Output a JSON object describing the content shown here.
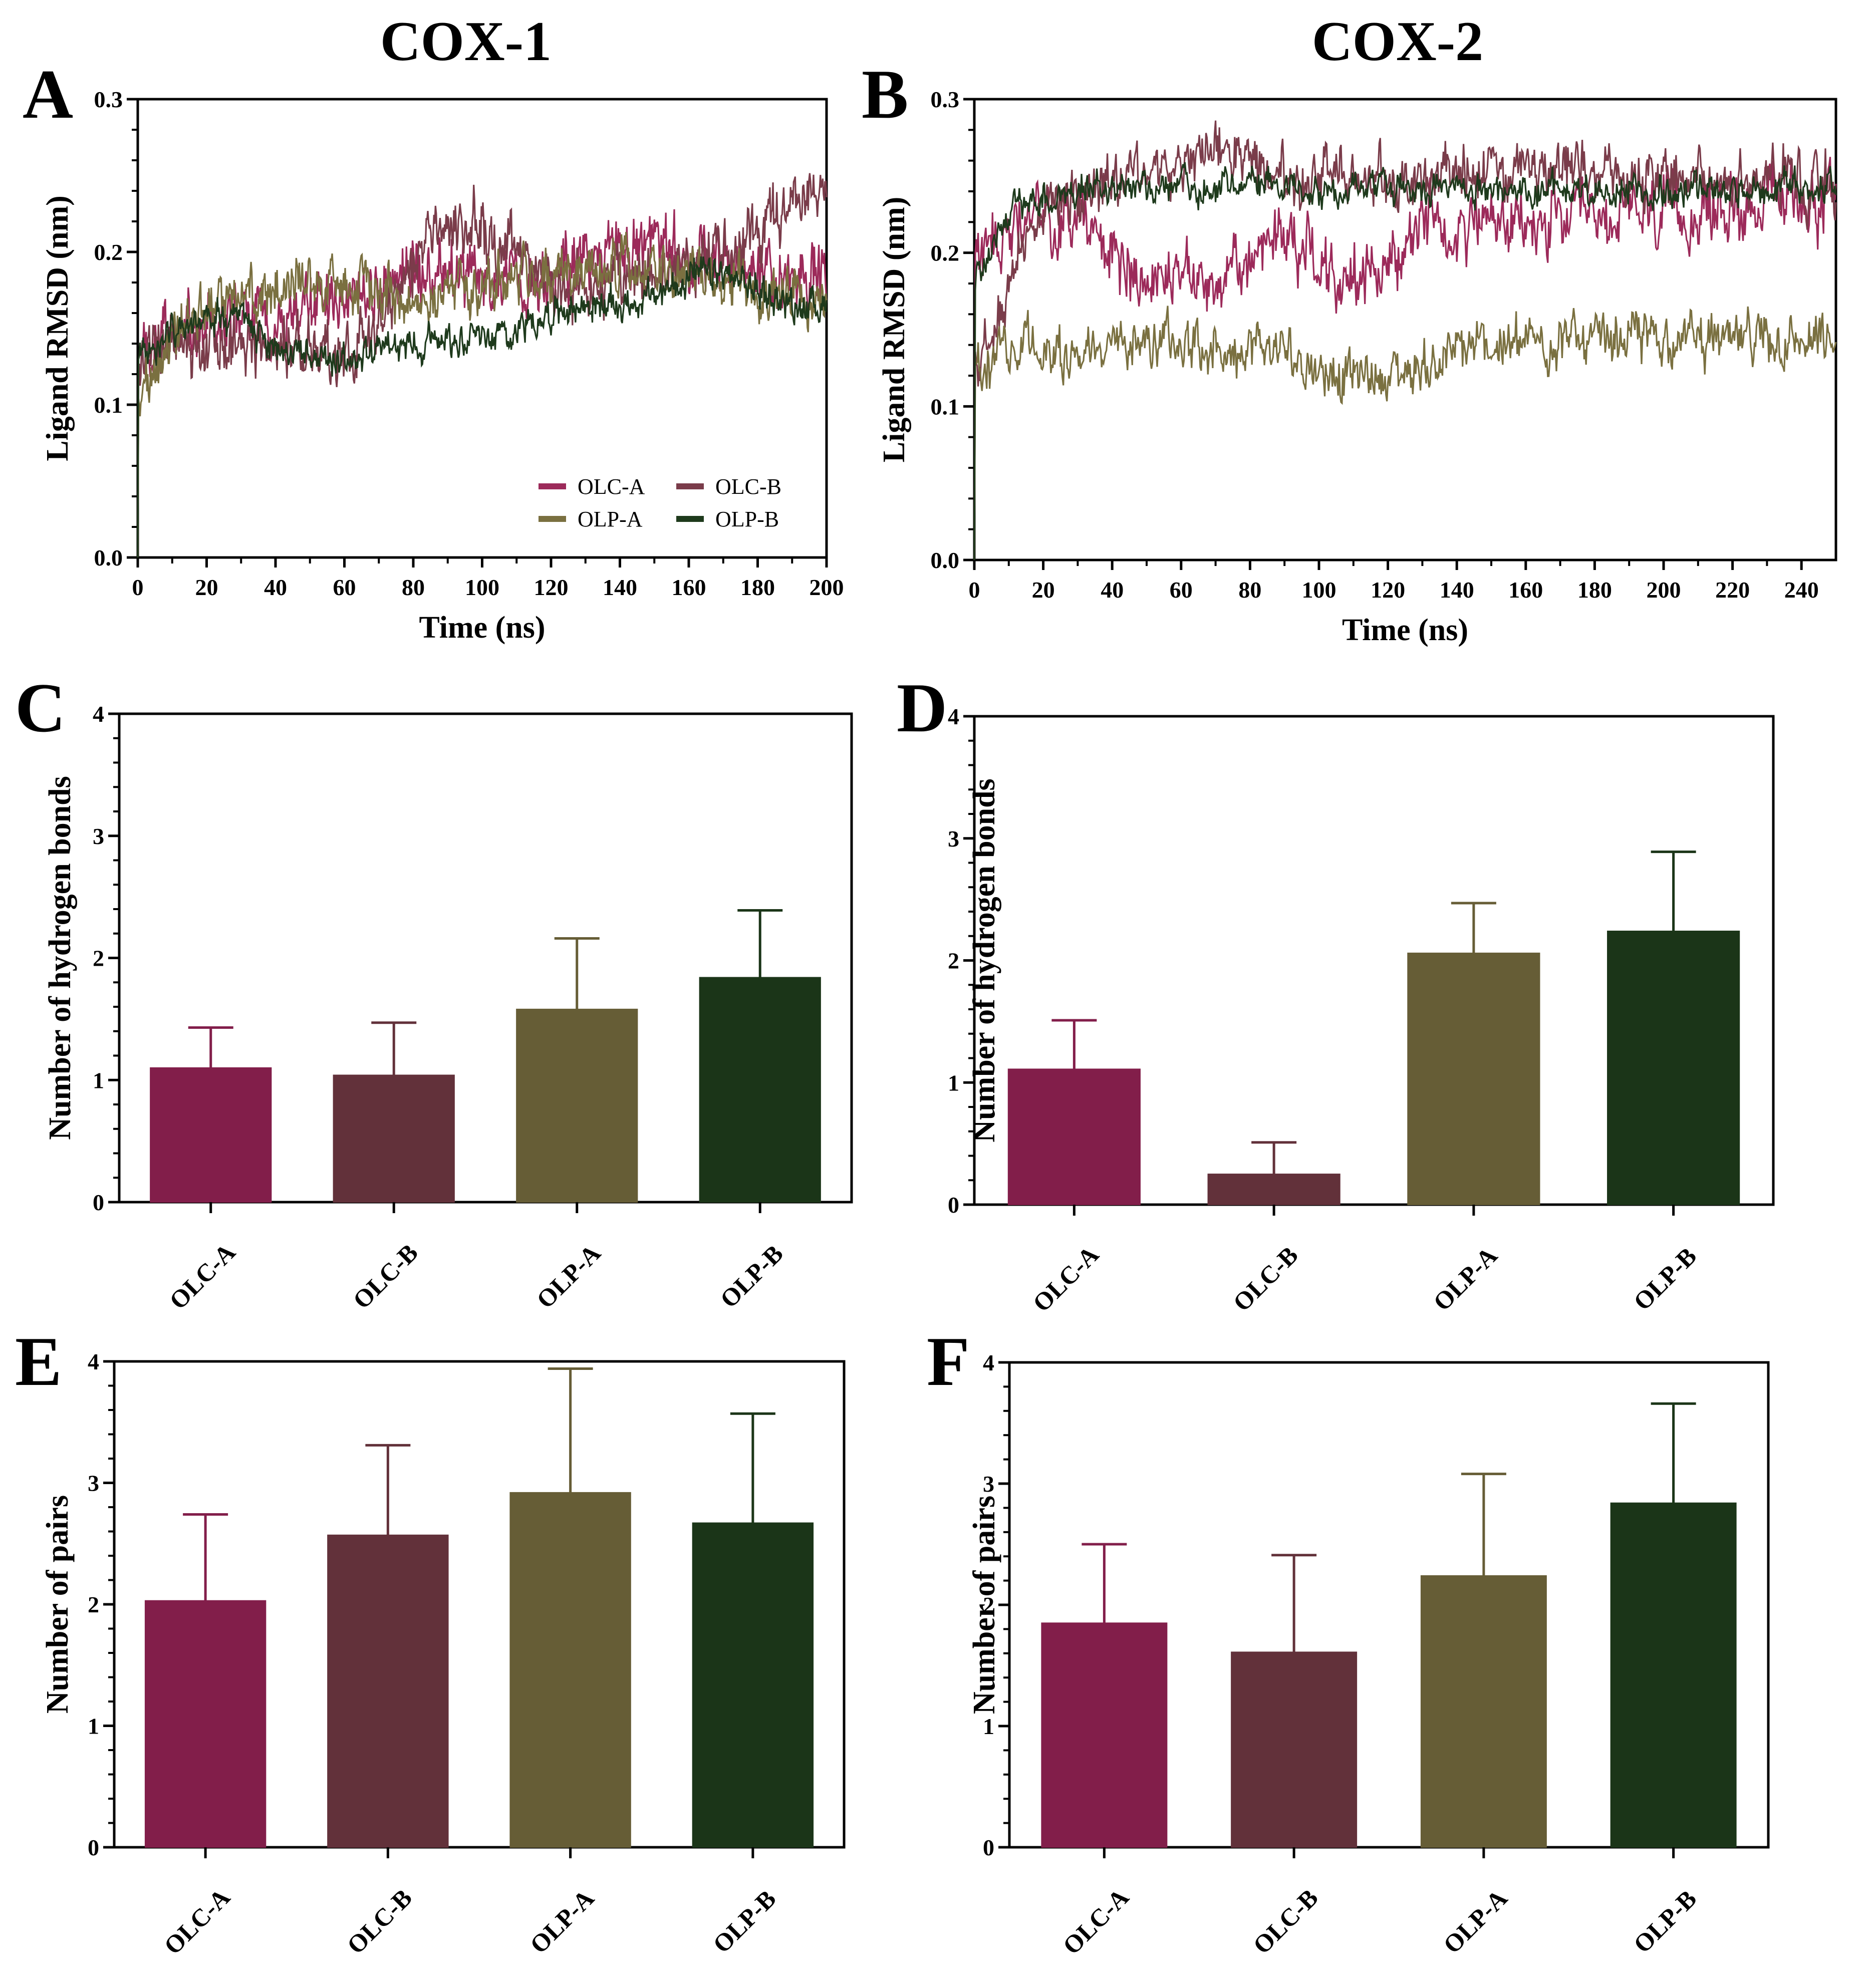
{
  "column_titles": [
    "COX-1",
    "COX-2"
  ],
  "colors": {
    "OLC-A": "#821e4a",
    "OLC-B": "#62313a",
    "OLP-A": "#665d36",
    "OLP-B": "#1b3518",
    "line_OLC-A": "#9c2a5a",
    "line_OLC-B": "#7a3c4a",
    "line_OLP-A": "#7a7040",
    "line_OLP-B": "#1e3a1c"
  },
  "chart_data": [
    {
      "panel": "A",
      "type": "line",
      "title": "COX-1",
      "xlabel": "Time (ns)",
      "ylabel": "Ligand RMSD (nm)",
      "xlim": [
        0,
        200
      ],
      "ylim": [
        0.0,
        0.3
      ],
      "xticks": [
        0,
        20,
        40,
        60,
        80,
        100,
        120,
        140,
        160,
        180,
        200
      ],
      "yticks": [
        0.0,
        0.1,
        0.2,
        0.3
      ],
      "ytick_labels": [
        "0.0",
        "0.1",
        "0.2",
        "0.3"
      ],
      "legend": [
        "OLC-A",
        "OLC-B",
        "OLP-A",
        "OLP-B"
      ],
      "legend_position": "bottom-right",
      "series": [
        {
          "name": "OLC-A",
          "x": [
            0,
            10,
            20,
            30,
            40,
            50,
            60,
            70,
            80,
            90,
            100,
            110,
            120,
            130,
            140,
            150,
            160,
            170,
            180,
            190,
            200
          ],
          "values": [
            0.12,
            0.145,
            0.15,
            0.155,
            0.155,
            0.165,
            0.17,
            0.18,
            0.185,
            0.19,
            0.185,
            0.175,
            0.18,
            0.195,
            0.2,
            0.205,
            0.2,
            0.195,
            0.19,
            0.19,
            0.185
          ]
        },
        {
          "name": "OLC-B",
          "x": [
            0,
            10,
            20,
            30,
            40,
            50,
            60,
            70,
            80,
            90,
            100,
            110,
            120,
            130,
            140,
            150,
            160,
            170,
            180,
            190,
            200
          ],
          "values": [
            0.13,
            0.14,
            0.145,
            0.14,
            0.14,
            0.135,
            0.135,
            0.15,
            0.19,
            0.22,
            0.215,
            0.2,
            0.18,
            0.175,
            0.18,
            0.185,
            0.195,
            0.2,
            0.21,
            0.23,
            0.235
          ]
        },
        {
          "name": "OLP-A",
          "x": [
            0,
            10,
            20,
            30,
            40,
            50,
            60,
            70,
            80,
            90,
            100,
            110,
            120,
            130,
            140,
            150,
            160,
            170,
            180,
            190,
            200
          ],
          "values": [
            0.1,
            0.145,
            0.165,
            0.17,
            0.175,
            0.18,
            0.18,
            0.175,
            0.17,
            0.175,
            0.18,
            0.185,
            0.185,
            0.19,
            0.19,
            0.185,
            0.185,
            0.18,
            0.18,
            0.175,
            0.165
          ]
        },
        {
          "name": "OLP-B",
          "x": [
            0,
            10,
            20,
            30,
            40,
            50,
            60,
            70,
            80,
            90,
            100,
            110,
            120,
            130,
            140,
            150,
            160,
            170,
            180,
            190,
            200
          ],
          "values": [
            0.13,
            0.15,
            0.155,
            0.16,
            0.135,
            0.13,
            0.13,
            0.135,
            0.14,
            0.145,
            0.145,
            0.15,
            0.16,
            0.165,
            0.165,
            0.17,
            0.185,
            0.185,
            0.175,
            0.165,
            0.165
          ]
        }
      ]
    },
    {
      "panel": "B",
      "type": "line",
      "title": "COX-2",
      "xlabel": "Time (ns)",
      "ylabel": "Ligand RMSD (nm)",
      "xlim": [
        0,
        250
      ],
      "ylim": [
        0.0,
        0.3
      ],
      "xticks": [
        0,
        20,
        40,
        60,
        80,
        100,
        120,
        140,
        160,
        180,
        200,
        220,
        240
      ],
      "yticks": [
        0.0,
        0.1,
        0.2,
        0.3
      ],
      "ytick_labels": [
        "0.0",
        "0.1",
        "0.2",
        "0.3"
      ],
      "series": [
        {
          "name": "OLC-A",
          "x": [
            0,
            10,
            20,
            30,
            40,
            50,
            60,
            70,
            80,
            90,
            100,
            110,
            120,
            130,
            140,
            150,
            160,
            170,
            180,
            190,
            200,
            210,
            220,
            230,
            240,
            250
          ],
          "values": [
            0.19,
            0.22,
            0.225,
            0.23,
            0.195,
            0.19,
            0.185,
            0.18,
            0.195,
            0.215,
            0.195,
            0.185,
            0.19,
            0.22,
            0.22,
            0.22,
            0.215,
            0.22,
            0.22,
            0.225,
            0.225,
            0.225,
            0.23,
            0.235,
            0.235,
            0.235
          ]
        },
        {
          "name": "OLC-B",
          "x": [
            0,
            10,
            20,
            30,
            40,
            50,
            60,
            70,
            80,
            90,
            100,
            110,
            120,
            130,
            140,
            150,
            160,
            170,
            180,
            190,
            200,
            210,
            220,
            230,
            240,
            250
          ],
          "values": [
            0.12,
            0.19,
            0.23,
            0.235,
            0.245,
            0.25,
            0.26,
            0.265,
            0.255,
            0.245,
            0.25,
            0.255,
            0.245,
            0.245,
            0.25,
            0.25,
            0.255,
            0.26,
            0.255,
            0.25,
            0.25,
            0.25,
            0.25,
            0.25,
            0.245,
            0.245
          ]
        },
        {
          "name": "OLP-A",
          "x": [
            0,
            10,
            20,
            30,
            40,
            50,
            60,
            70,
            80,
            90,
            100,
            110,
            120,
            130,
            140,
            150,
            160,
            170,
            180,
            190,
            200,
            210,
            220,
            230,
            240,
            250
          ],
          "values": [
            0.12,
            0.14,
            0.14,
            0.135,
            0.14,
            0.14,
            0.14,
            0.135,
            0.14,
            0.135,
            0.125,
            0.12,
            0.12,
            0.125,
            0.135,
            0.14,
            0.14,
            0.145,
            0.14,
            0.145,
            0.145,
            0.145,
            0.14,
            0.145,
            0.14,
            0.14
          ]
        },
        {
          "name": "OLP-B",
          "x": [
            0,
            10,
            20,
            30,
            40,
            50,
            60,
            70,
            80,
            90,
            100,
            110,
            120,
            130,
            140,
            150,
            160,
            170,
            180,
            190,
            200,
            210,
            220,
            230,
            240,
            250
          ],
          "values": [
            0.18,
            0.225,
            0.235,
            0.24,
            0.243,
            0.243,
            0.243,
            0.243,
            0.243,
            0.243,
            0.243,
            0.243,
            0.242,
            0.242,
            0.242,
            0.242,
            0.242,
            0.241,
            0.241,
            0.241,
            0.241,
            0.241,
            0.241,
            0.241,
            0.241,
            0.241
          ]
        }
      ]
    },
    {
      "panel": "C",
      "type": "bar",
      "title": "COX-1",
      "ylabel": "Number of hydrogen bonds",
      "ylim": [
        0,
        4
      ],
      "yticks": [
        0,
        1,
        2,
        3,
        4
      ],
      "categories": [
        "OLC-A",
        "OLC-B",
        "OLP-A",
        "OLP-B"
      ],
      "values": [
        1.1,
        1.04,
        1.58,
        1.84
      ],
      "errors": [
        0.33,
        0.43,
        0.58,
        0.55
      ]
    },
    {
      "panel": "D",
      "type": "bar",
      "title": "COX-2",
      "ylabel": "Number of hydrogen bonds",
      "ylim": [
        0,
        4
      ],
      "yticks": [
        0,
        1,
        2,
        3,
        4
      ],
      "categories": [
        "OLC-A",
        "OLC-B",
        "OLP-A",
        "OLP-B"
      ],
      "values": [
        1.11,
        0.25,
        2.06,
        2.24
      ],
      "errors": [
        0.4,
        0.26,
        0.41,
        0.65
      ]
    },
    {
      "panel": "E",
      "type": "bar",
      "title": "COX-1",
      "ylabel": "Number of pairs",
      "ylim": [
        0,
        4
      ],
      "yticks": [
        0,
        1,
        2,
        3,
        4
      ],
      "categories": [
        "OLC-A",
        "OLC-B",
        "OLP-A",
        "OLP-B"
      ],
      "values": [
        2.03,
        2.57,
        2.92,
        2.67
      ],
      "errors": [
        0.71,
        0.74,
        1.02,
        0.9
      ]
    },
    {
      "panel": "F",
      "type": "bar",
      "title": "COX-2",
      "ylabel": "Number of pairs",
      "ylim": [
        0,
        4
      ],
      "yticks": [
        0,
        1,
        2,
        3,
        4
      ],
      "categories": [
        "OLC-A",
        "OLC-B",
        "OLP-A",
        "OLP-B"
      ],
      "values": [
        1.85,
        1.61,
        2.24,
        2.84
      ],
      "errors": [
        0.65,
        0.8,
        0.84,
        0.82
      ]
    }
  ]
}
